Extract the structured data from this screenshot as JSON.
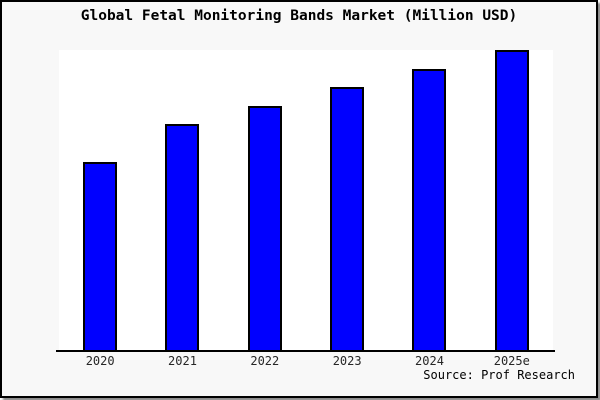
{
  "window": {
    "background_color": "#f8f8f8",
    "border_color": "#000000",
    "plot_background_color": "#ffffff"
  },
  "chart_data": {
    "type": "bar",
    "title": "Global Fetal Monitoring Bands Market (Million USD)",
    "categories": [
      "2020",
      "2021",
      "2022",
      "2023",
      "2024",
      "2025e"
    ],
    "values": [
      62.7,
      75.2,
      81.5,
      87.7,
      93.7,
      100
    ],
    "values_note": "Relative bar heights (2025e = 100); source chart shows no y-axis scale or data labels",
    "xlabel": "",
    "ylabel": "",
    "ylim": [
      0,
      100
    ],
    "grid": false,
    "legend": false,
    "y_axis_visible": false,
    "bar_color": "#0000ff",
    "bar_border_color": "#000000",
    "axis_line_color": "#000000"
  },
  "footer": {
    "source_label": "Source: Prof Research"
  }
}
